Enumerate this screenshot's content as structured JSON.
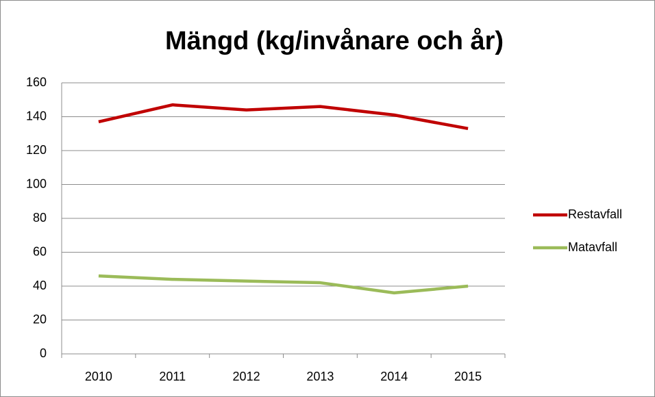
{
  "chart_data": {
    "type": "line",
    "title": "Mängd (kg/invånare och år)",
    "categories": [
      "2010",
      "2011",
      "2012",
      "2013",
      "2014",
      "2015"
    ],
    "series": [
      {
        "name": "Restavfall",
        "color": "#c00000",
        "values": [
          137,
          147,
          144,
          146,
          141,
          133
        ]
      },
      {
        "name": "Matavfall",
        "color": "#9bbb59",
        "values": [
          46,
          44,
          43,
          42,
          36,
          40
        ]
      }
    ],
    "ylim": [
      0,
      160
    ],
    "yticks": [
      0,
      20,
      40,
      60,
      80,
      100,
      120,
      140,
      160
    ],
    "grid": true,
    "legend": "right"
  }
}
